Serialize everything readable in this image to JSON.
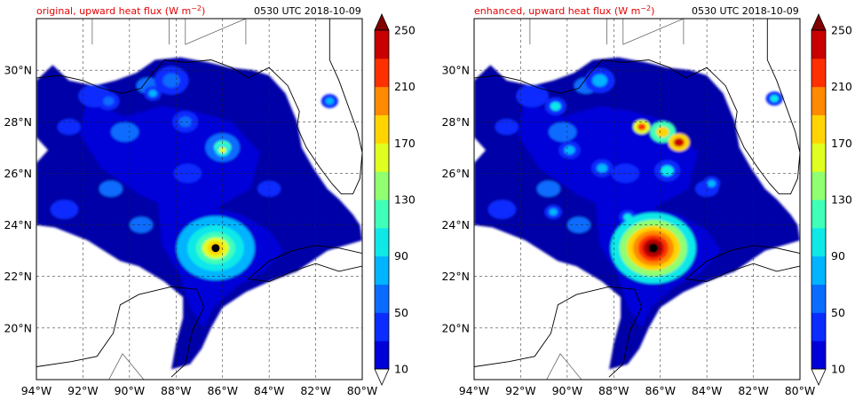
{
  "panels": [
    {
      "title": "original, upward heat flux (W m$^{-2}$)",
      "title_display": "original, upward heat flux (W m",
      "title_sup": "−2",
      "title_tail": ")",
      "time": "0530 UTC 2018-10-09"
    },
    {
      "title": "enhanced, upward heat flux (W m$^{-2}$)",
      "title_display": "enhanced, upward heat flux (W m",
      "title_sup": "−2",
      "title_tail": ")",
      "time": "0530 UTC 2018-10-09"
    }
  ],
  "colors": {
    "title": "#e60000",
    "background": "#ffffff"
  },
  "chart_data": [
    {
      "type": "heatmap",
      "title": "original, upward heat flux (W m-2)",
      "subtitle": "0530 UTC 2018-10-09",
      "x_ticks": [
        "94°W",
        "92°W",
        "90°W",
        "88°W",
        "86°W",
        "84°W",
        "82°W",
        "80°W"
      ],
      "y_ticks": [
        "20°N",
        "22°N",
        "24°N",
        "26°N",
        "28°N",
        "30°N"
      ],
      "xlim": [
        -94,
        -80
      ],
      "ylim": [
        18,
        32
      ],
      "grid": true,
      "colorbar": {
        "levels": [
          10,
          30,
          50,
          70,
          90,
          110,
          130,
          150,
          170,
          190,
          210,
          230,
          250
        ],
        "tick_labels": [
          "10",
          "50",
          "90",
          "130",
          "170",
          "210",
          "250"
        ],
        "colors": [
          "#0000a8",
          "#0000d8",
          "#0a2cff",
          "#0a6cff",
          "#00b4ff",
          "#10e8e8",
          "#40ffb8",
          "#90ff70",
          "#e0ff20",
          "#ffd400",
          "#ff8a00",
          "#ff3000",
          "#c80000",
          "#800000"
        ],
        "extend": "both"
      },
      "storm_center": {
        "lon": -86.3,
        "lat": 23.1
      }
    },
    {
      "type": "heatmap",
      "title": "enhanced, upward heat flux (W m-2)",
      "subtitle": "0530 UTC 2018-10-09",
      "x_ticks": [
        "94°W",
        "92°W",
        "90°W",
        "88°W",
        "86°W",
        "84°W",
        "82°W",
        "80°W"
      ],
      "y_ticks": [
        "20°N",
        "22°N",
        "24°N",
        "26°N",
        "28°N",
        "30°N"
      ],
      "xlim": [
        -94,
        -80
      ],
      "ylim": [
        18,
        32
      ],
      "grid": true,
      "colorbar": {
        "levels": [
          10,
          30,
          50,
          70,
          90,
          110,
          130,
          150,
          170,
          190,
          210,
          230,
          250
        ],
        "tick_labels": [
          "10",
          "50",
          "90",
          "130",
          "170",
          "210",
          "250"
        ],
        "colors": [
          "#0000a8",
          "#0000d8",
          "#0a2cff",
          "#0a6cff",
          "#00b4ff",
          "#10e8e8",
          "#40ffb8",
          "#90ff70",
          "#e0ff20",
          "#ffd400",
          "#ff8a00",
          "#ff3000",
          "#c80000",
          "#800000"
        ],
        "extend": "both"
      },
      "storm_center": {
        "lon": -86.3,
        "lat": 23.1
      }
    }
  ]
}
